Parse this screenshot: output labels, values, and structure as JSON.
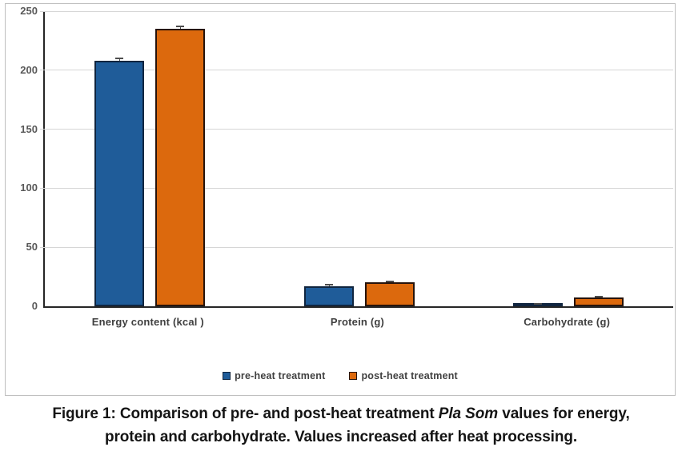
{
  "figure": {
    "frame_border_color": "#BFBFBF",
    "background_color": "#FFFFFF"
  },
  "chart_data": {
    "type": "bar",
    "title": "",
    "xlabel": "",
    "ylabel": "",
    "categories": [
      "Energy content  (kcal )",
      "Protein (g)",
      "Carbohydrate (g)"
    ],
    "series": [
      {
        "name": "pre-heat treatment",
        "values": [
          208,
          17,
          1.5
        ],
        "errors": [
          2,
          1,
          0.5
        ],
        "fill_color": "#1F5C99",
        "border_color": "#10253F"
      },
      {
        "name": "post-heat treatment",
        "values": [
          235,
          20,
          7.5
        ],
        "errors": [
          2,
          1,
          0.8
        ],
        "fill_color": "#DC690D",
        "border_color": "#26130B"
      }
    ],
    "ylim": [
      0,
      250
    ],
    "yticks": [
      0,
      50,
      100,
      150,
      200,
      250
    ],
    "grid": true,
    "gridline_color": "#D6D6D6",
    "axis_line_color": "#262626",
    "tick_label_color": "#595959",
    "category_label_color": "#404040",
    "error_bar_color": "#4d4d4d",
    "legend_position": "bottom"
  },
  "caption": {
    "line1_pre": "Figure 1: Comparison of pre- and post-heat treatment ",
    "line1_italic": "Pla Som",
    "line1_post": " values for energy,",
    "line2": "protein and carbohydrate. Values increased after heat processing."
  }
}
